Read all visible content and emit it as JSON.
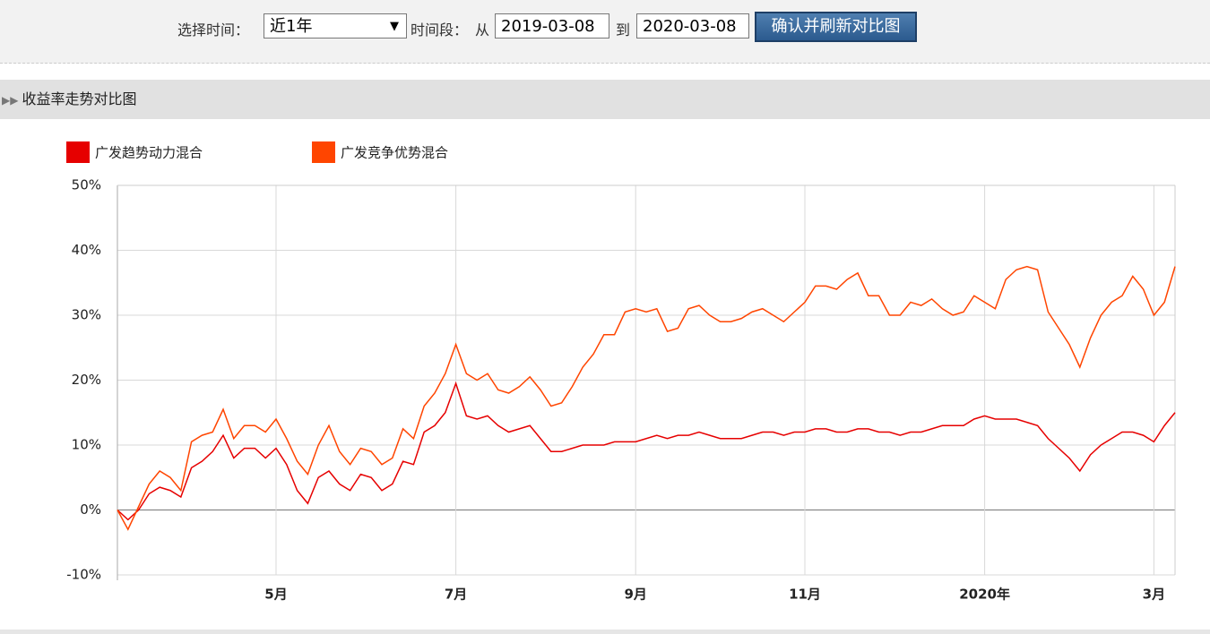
{
  "controls": {
    "time_label": "选择时间：",
    "period_select": "近1年",
    "range_label": "时间段：",
    "from_label": "从",
    "from_date": "2019-03-08",
    "to_label": "到",
    "to_date": "2020-03-08",
    "button": "确认并刷新对比图"
  },
  "section_title": "收益率走势对比图",
  "chart_data": {
    "type": "line",
    "categories": [
      null,
      null,
      null,
      null,
      null,
      null,
      null,
      null,
      null,
      null,
      null,
      null,
      null,
      null,
      null,
      "5月",
      null,
      null,
      null,
      null,
      null,
      null,
      null,
      null,
      null,
      null,
      null,
      null,
      null,
      null,
      null,
      null,
      "7月",
      null,
      null,
      null,
      null,
      null,
      null,
      null,
      null,
      null,
      null,
      null,
      null,
      null,
      null,
      null,
      null,
      "9月",
      null,
      null,
      null,
      null,
      null,
      null,
      null,
      null,
      null,
      null,
      null,
      null,
      null,
      null,
      null,
      "11月",
      null,
      null,
      null,
      null,
      null,
      null,
      null,
      null,
      null,
      null,
      null,
      null,
      null,
      null,
      null,
      null,
      "2020年",
      null,
      null,
      null,
      null,
      null,
      null,
      null,
      null,
      null,
      null,
      null,
      null,
      null,
      null,
      null,
      "3月",
      null,
      null
    ],
    "series": [
      {
        "name": "广发趋势动力混合",
        "color": "#e60000",
        "values": [
          0,
          -1.5,
          0,
          2.5,
          3.5,
          3,
          2,
          6.5,
          7.5,
          9,
          11.5,
          8,
          9.5,
          9.5,
          8,
          9.5,
          7,
          3,
          1,
          5,
          6,
          4,
          3,
          5.5,
          5,
          3,
          4,
          7.5,
          7,
          12,
          13,
          15,
          19.5,
          14.5,
          14,
          14.5,
          13,
          12,
          12.5,
          13,
          11,
          9,
          9,
          9.5,
          10,
          10,
          10,
          10.5,
          10.5,
          10.5,
          11,
          11.5,
          11,
          11.5,
          11.5,
          12,
          11.5,
          11,
          11,
          11,
          11.5,
          12,
          12,
          11.5,
          12,
          12,
          12.5,
          12.5,
          12,
          12,
          12.5,
          12.5,
          12,
          12,
          11.5,
          12,
          12,
          12.5,
          13,
          13,
          13,
          14,
          14.5,
          14,
          14,
          14,
          13.5,
          13,
          11,
          9.5,
          8,
          6,
          8.5,
          10,
          11,
          12,
          12,
          11.5,
          10.5,
          13,
          15
        ]
      },
      {
        "name": "广发竞争优势混合",
        "color": "#ff4500",
        "values": [
          0,
          -3,
          0.5,
          4,
          6,
          5,
          3,
          10.5,
          11.5,
          12,
          15.5,
          11,
          13,
          13,
          12,
          14,
          11,
          7.5,
          5.5,
          10,
          13,
          9,
          7,
          9.5,
          9,
          7,
          8,
          12.5,
          11,
          16,
          18,
          21,
          25.5,
          21,
          20,
          21,
          18.5,
          18,
          19,
          20.5,
          18.5,
          16,
          16.5,
          19,
          22,
          24,
          27,
          27,
          30.5,
          31,
          30.5,
          31,
          27.5,
          28,
          31,
          31.5,
          30,
          29,
          29,
          29.5,
          30.5,
          31,
          30,
          29,
          30.5,
          32,
          34.5,
          34.5,
          34,
          35.5,
          36.5,
          33,
          33,
          30,
          30,
          32,
          31.5,
          32.5,
          31,
          30,
          30.5,
          33,
          32,
          31,
          35.5,
          37,
          37.5,
          37,
          30.5,
          28,
          25.5,
          22,
          26.5,
          30,
          32,
          33,
          36,
          34,
          30,
          32,
          37.5
        ]
      }
    ],
    "ylim": [
      -10,
      50
    ],
    "yticks": [
      {
        "value": -10,
        "label": "-10%"
      },
      {
        "value": 0,
        "label": "0%"
      },
      {
        "value": 10,
        "label": "10%"
      },
      {
        "value": 20,
        "label": "20%"
      },
      {
        "value": 30,
        "label": "30%"
      },
      {
        "value": 40,
        "label": "40%"
      },
      {
        "value": 50,
        "label": "50%"
      }
    ],
    "grid": true
  }
}
